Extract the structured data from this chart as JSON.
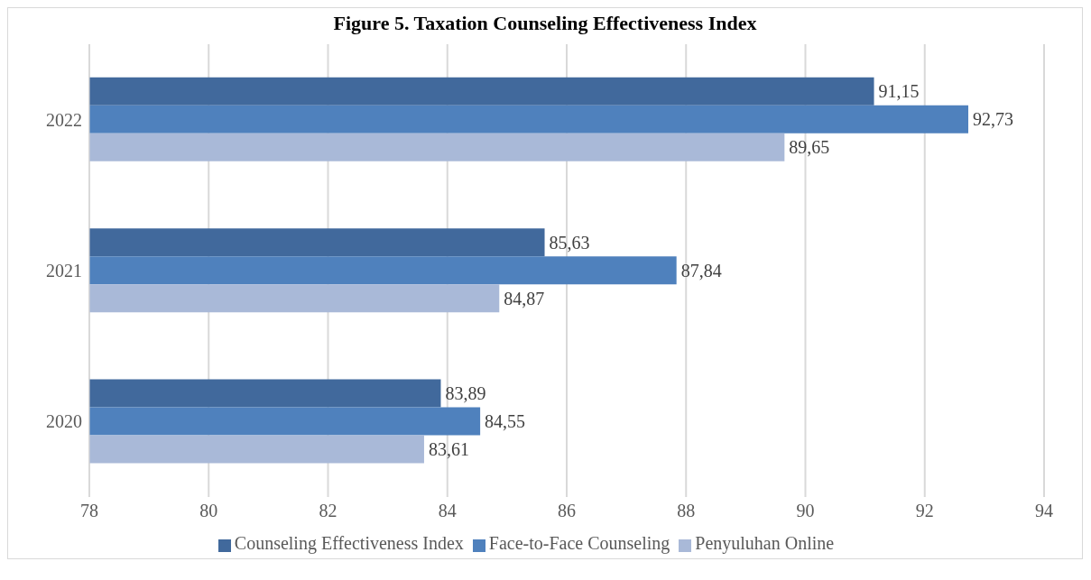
{
  "chart_data": {
    "type": "bar",
    "orientation": "horizontal",
    "title": "Figure 5. Taxation Counseling Effectiveness Index",
    "categories": [
      "2022",
      "2021",
      "2020"
    ],
    "series": [
      {
        "name": "Counseling Effectiveness Index",
        "color": "#41699c",
        "values": [
          91.15,
          85.63,
          83.89
        ],
        "value_labels": [
          "91,15",
          "85,63",
          "83,89"
        ]
      },
      {
        "name": "Face-to-Face Counseling",
        "color": "#4f81bd",
        "values": [
          92.73,
          87.84,
          84.55
        ],
        "value_labels": [
          "92,73",
          "87,84",
          "84,55"
        ]
      },
      {
        "name": "Penyuluhan Online",
        "color": "#a9b9d8",
        "values": [
          89.65,
          84.87,
          83.61
        ],
        "value_labels": [
          "89,65",
          "84,87",
          "83,61"
        ]
      }
    ],
    "xlim": [
      78,
      94
    ],
    "xticks": [
      78,
      80,
      82,
      84,
      86,
      88,
      90,
      92,
      94
    ],
    "grid": "x",
    "legend": "bottom"
  }
}
